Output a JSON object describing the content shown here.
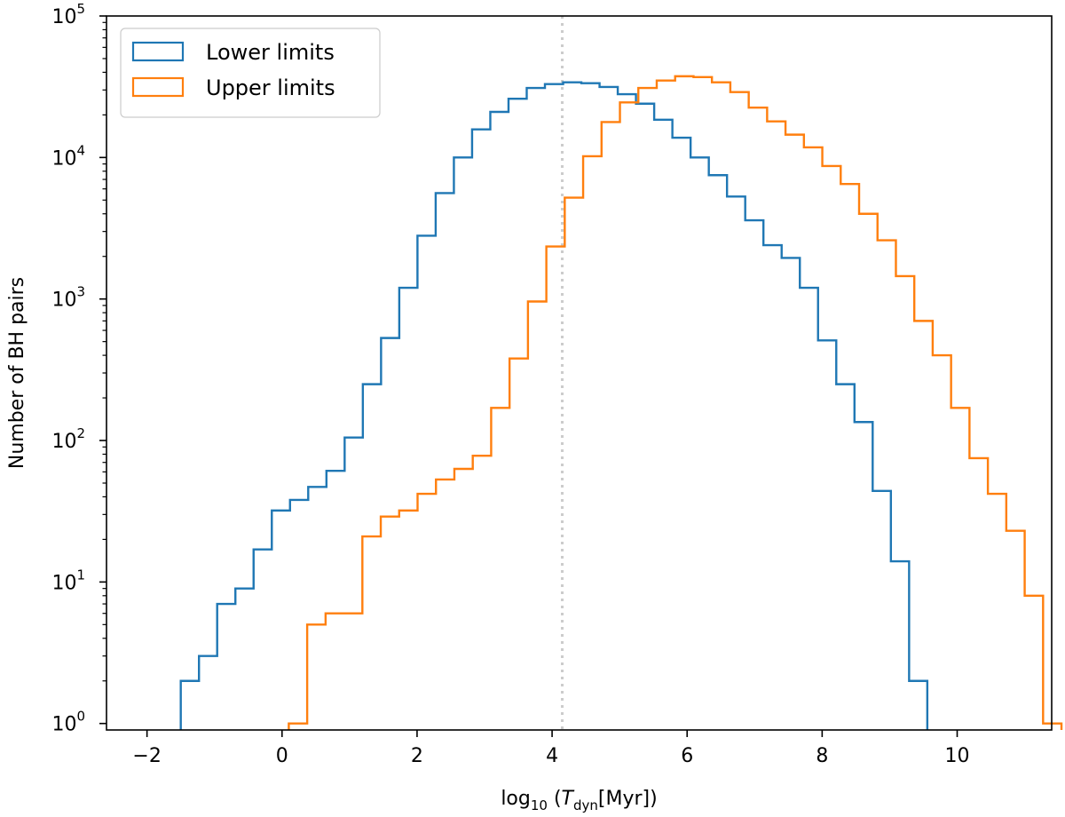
{
  "chart_data": {
    "type": "histogram",
    "xlabel": {
      "prefix": "log",
      "sub": "10",
      "open": " (",
      "var": "T",
      "var_sub": "dyn",
      "rest": "[Myr])"
    },
    "ylabel": "Number of BH pairs",
    "xlim": [
      -2.6,
      11.4
    ],
    "ylim": [
      0.9,
      100000
    ],
    "yscale": "log",
    "x_ticks": [
      {
        "value": -2,
        "label": "−2"
      },
      {
        "value": 0,
        "label": "0"
      },
      {
        "value": 2,
        "label": "2"
      },
      {
        "value": 4,
        "label": "4"
      },
      {
        "value": 6,
        "label": "6"
      },
      {
        "value": 8,
        "label": "8"
      },
      {
        "value": 10,
        "label": "10"
      }
    ],
    "y_ticks": [
      {
        "value": 1,
        "base": "10",
        "exp": "0"
      },
      {
        "value": 10,
        "base": "10",
        "exp": "1"
      },
      {
        "value": 100,
        "base": "10",
        "exp": "2"
      },
      {
        "value": 1000,
        "base": "10",
        "exp": "3"
      },
      {
        "value": 10000,
        "base": "10",
        "exp": "4"
      },
      {
        "value": 100000,
        "base": "10",
        "exp": "5"
      }
    ],
    "vline": {
      "x": 4.15,
      "color": "#cccccc",
      "style": "dotted"
    },
    "legend": {
      "placement": "upper-left"
    },
    "series": [
      {
        "name": "Lower limits",
        "color": "#1f77b4",
        "bin_start": -1.5,
        "bin_width": 0.2697,
        "counts": [
          2,
          3,
          7,
          9,
          17,
          32,
          38,
          47,
          61,
          105,
          250,
          530,
          1200,
          2800,
          5600,
          10000,
          15800,
          21000,
          26000,
          31000,
          33000,
          34000,
          33500,
          31500,
          28000,
          24000,
          18500,
          13800,
          10000,
          7500,
          5300,
          3600,
          2400,
          1950,
          1200,
          510,
          250,
          135,
          44,
          14,
          2
        ]
      },
      {
        "name": "Upper limits",
        "color": "#ff7f0e",
        "bin_start": 0.1,
        "bin_width": 0.2725,
        "counts": [
          1,
          5,
          6,
          6,
          21,
          29,
          32,
          42,
          53,
          63,
          78,
          170,
          380,
          960,
          2350,
          5200,
          10200,
          17800,
          24500,
          31000,
          35000,
          37500,
          37000,
          34000,
          29000,
          22500,
          18000,
          14500,
          11800,
          8700,
          6500,
          4000,
          2600,
          1450,
          700,
          400,
          170,
          75,
          42,
          23,
          8,
          1
        ]
      }
    ]
  }
}
